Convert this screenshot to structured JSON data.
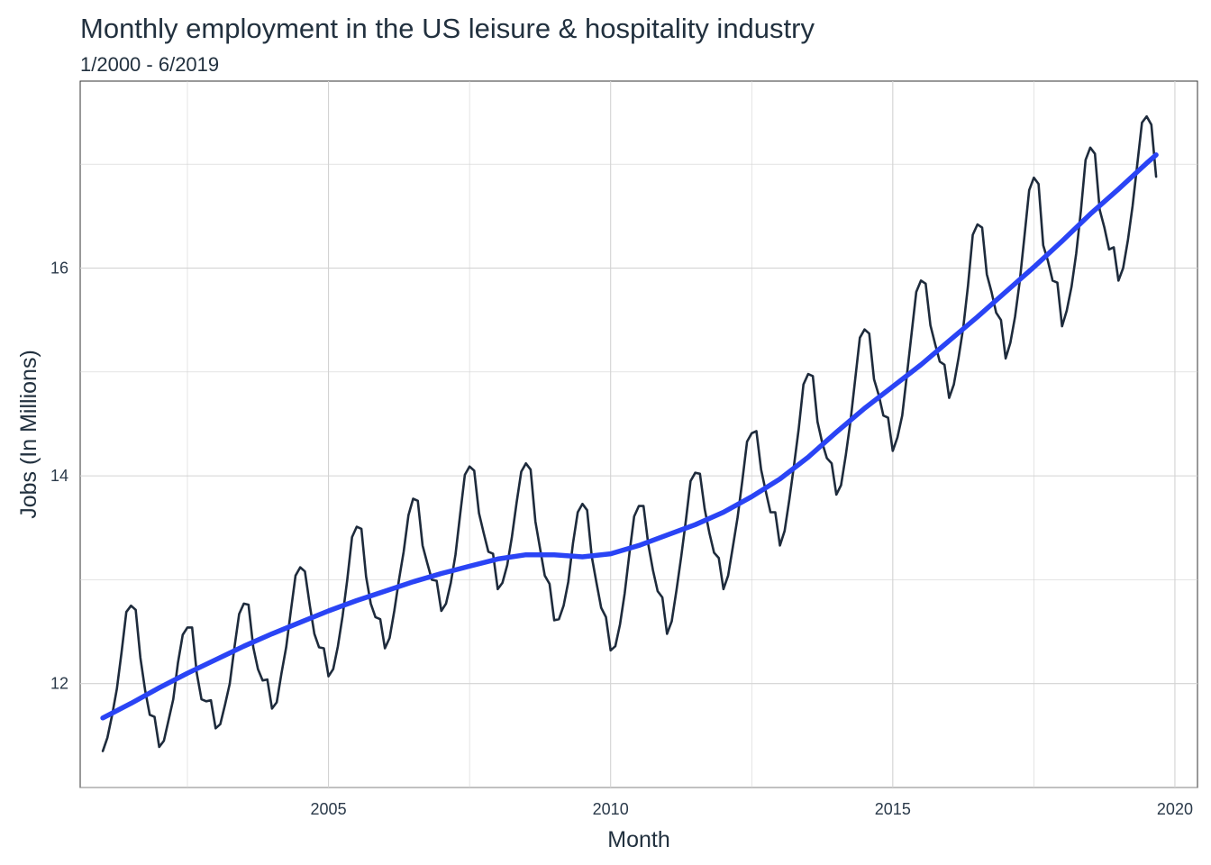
{
  "chart_data": {
    "type": "line",
    "title": "Monthly employment in the US leisure & hospitality industry",
    "subtitle": "1/2000 - 6/2019",
    "xlabel": "Month",
    "ylabel": "Jobs (In Millions)",
    "xlim": [
      2000.6,
      2020.4
    ],
    "ylim": [
      11.0,
      17.8
    ],
    "x_ticks": [
      2005,
      2010,
      2015,
      2020
    ],
    "y_ticks": [
      12,
      14,
      16
    ],
    "grid": true,
    "legend": "none",
    "colors": {
      "data_line": "#1e2b3c",
      "trend_line": "#2a44f5",
      "grid": "#d3d3d3",
      "panel_border": "#333333"
    },
    "series": [
      {
        "style": "monthly",
        "x": [
          2001.0,
          2001.083,
          2001.167,
          2001.25,
          2001.333,
          2001.417,
          2001.5,
          2001.583,
          2001.667,
          2001.75,
          2001.833,
          2001.917,
          2002.0,
          2002.083,
          2002.167,
          2002.25,
          2002.333,
          2002.417,
          2002.5,
          2002.583,
          2002.667,
          2002.75,
          2002.833,
          2002.917,
          2003.0,
          2003.083,
          2003.167,
          2003.25,
          2003.333,
          2003.417,
          2003.5,
          2003.583,
          2003.667,
          2003.75,
          2003.833,
          2003.917,
          2004.0,
          2004.083,
          2004.167,
          2004.25,
          2004.333,
          2004.417,
          2004.5,
          2004.583,
          2004.667,
          2004.75,
          2004.833,
          2004.917,
          2005.0,
          2005.083,
          2005.167,
          2005.25,
          2005.333,
          2005.417,
          2005.5,
          2005.583,
          2005.667,
          2005.75,
          2005.833,
          2005.917,
          2006.0,
          2006.083,
          2006.167,
          2006.25,
          2006.333,
          2006.417,
          2006.5,
          2006.583,
          2006.667,
          2006.75,
          2006.833,
          2006.917,
          2007.0,
          2007.083,
          2007.167,
          2007.25,
          2007.333,
          2007.417,
          2007.5,
          2007.583,
          2007.667,
          2007.75,
          2007.833,
          2007.917,
          2008.0,
          2008.083,
          2008.167,
          2008.25,
          2008.333,
          2008.417,
          2008.5,
          2008.583,
          2008.667,
          2008.75,
          2008.833,
          2008.917,
          2009.0,
          2009.083,
          2009.167,
          2009.25,
          2009.333,
          2009.417,
          2009.5,
          2009.583,
          2009.667,
          2009.75,
          2009.833,
          2009.917,
          2010.0,
          2010.083,
          2010.167,
          2010.25,
          2010.333,
          2010.417,
          2010.5,
          2010.583,
          2010.667,
          2010.75,
          2010.833,
          2010.917,
          2011.0,
          2011.083,
          2011.167,
          2011.25,
          2011.333,
          2011.417,
          2011.5,
          2011.583,
          2011.667,
          2011.75,
          2011.833,
          2011.917,
          2012.0,
          2012.083,
          2012.167,
          2012.25,
          2012.333,
          2012.417,
          2012.5,
          2012.583,
          2012.667,
          2012.75,
          2012.833,
          2012.917,
          2013.0,
          2013.083,
          2013.167,
          2013.25,
          2013.333,
          2013.417,
          2013.5,
          2013.583,
          2013.667,
          2013.75,
          2013.833,
          2013.917,
          2014.0,
          2014.083,
          2014.167,
          2014.25,
          2014.333,
          2014.417,
          2014.5,
          2014.583,
          2014.667,
          2014.75,
          2014.833,
          2014.917,
          2015.0,
          2015.083,
          2015.167,
          2015.25,
          2015.333,
          2015.417,
          2015.5,
          2015.583,
          2015.667,
          2015.75,
          2015.833,
          2015.917,
          2016.0,
          2016.083,
          2016.167,
          2016.25,
          2016.333,
          2016.417,
          2016.5,
          2016.583,
          2016.667,
          2016.75,
          2016.833,
          2016.917,
          2017.0,
          2017.083,
          2017.167,
          2017.25,
          2017.333,
          2017.417,
          2017.5,
          2017.583,
          2017.667,
          2017.75,
          2017.833,
          2017.917,
          2018.0,
          2018.083,
          2018.167,
          2018.25,
          2018.333,
          2018.417,
          2018.5,
          2018.583,
          2018.667,
          2018.75,
          2018.833,
          2018.917,
          2019.0,
          2019.083,
          2019.167,
          2019.25,
          2019.333,
          2019.417,
          2019.5,
          2019.583,
          2019.667
        ],
        "y": [
          11.35,
          11.48,
          11.7,
          11.95,
          12.3,
          12.69,
          12.75,
          12.71,
          12.25,
          11.94,
          11.7,
          11.68,
          11.39,
          11.45,
          11.65,
          11.85,
          12.2,
          12.47,
          12.54,
          12.54,
          12.1,
          11.85,
          11.83,
          11.84,
          11.57,
          11.61,
          11.8,
          12.0,
          12.35,
          12.67,
          12.77,
          12.76,
          12.35,
          12.14,
          12.03,
          12.04,
          11.76,
          11.82,
          12.1,
          12.35,
          12.7,
          13.04,
          13.12,
          13.08,
          12.76,
          12.48,
          12.35,
          12.34,
          12.07,
          12.14,
          12.36,
          12.65,
          13.0,
          13.41,
          13.51,
          13.49,
          13.03,
          12.77,
          12.64,
          12.62,
          12.34,
          12.44,
          12.7,
          13.0,
          13.27,
          13.62,
          13.78,
          13.76,
          13.33,
          13.16,
          13.0,
          12.99,
          12.7,
          12.77,
          12.97,
          13.24,
          13.63,
          14.01,
          14.09,
          14.05,
          13.64,
          13.45,
          13.27,
          13.25,
          12.91,
          12.97,
          13.14,
          13.41,
          13.74,
          14.04,
          14.12,
          14.06,
          13.56,
          13.3,
          13.04,
          12.96,
          12.61,
          12.62,
          12.75,
          12.98,
          13.35,
          13.65,
          13.73,
          13.67,
          13.22,
          12.97,
          12.73,
          12.64,
          12.32,
          12.36,
          12.57,
          12.87,
          13.25,
          13.61,
          13.71,
          13.71,
          13.34,
          13.09,
          12.89,
          12.83,
          12.48,
          12.6,
          12.9,
          13.22,
          13.57,
          13.95,
          14.03,
          14.02,
          13.68,
          13.45,
          13.26,
          13.21,
          12.91,
          13.04,
          13.32,
          13.6,
          13.95,
          14.33,
          14.41,
          14.43,
          14.06,
          13.85,
          13.65,
          13.65,
          13.33,
          13.47,
          13.77,
          14.1,
          14.45,
          14.88,
          14.98,
          14.96,
          14.52,
          14.32,
          14.17,
          14.12,
          13.82,
          13.91,
          14.2,
          14.52,
          14.92,
          15.33,
          15.41,
          15.37,
          14.93,
          14.78,
          14.58,
          14.56,
          14.24,
          14.37,
          14.58,
          14.97,
          15.37,
          15.77,
          15.88,
          15.85,
          15.45,
          15.27,
          15.1,
          15.07,
          14.75,
          14.88,
          15.14,
          15.43,
          15.83,
          16.32,
          16.42,
          16.39,
          15.94,
          15.77,
          15.57,
          15.5,
          15.13,
          15.28,
          15.53,
          15.87,
          16.3,
          16.75,
          16.87,
          16.81,
          16.22,
          16.07,
          15.88,
          15.86,
          15.44,
          15.59,
          15.82,
          16.14,
          16.55,
          17.04,
          17.16,
          17.1,
          16.56,
          16.39,
          16.18,
          16.2,
          15.88,
          16.0,
          16.27,
          16.6,
          17.0,
          17.4,
          17.46,
          17.38,
          16.88
        ]
      },
      {
        "style": "smoothed",
        "x": [
          2001.0,
          2001.5,
          2002.0,
          2002.5,
          2003.0,
          2003.5,
          2004.0,
          2004.5,
          2005.0,
          2005.5,
          2006.0,
          2006.5,
          2007.0,
          2007.5,
          2008.0,
          2008.5,
          2009.0,
          2009.5,
          2010.0,
          2010.5,
          2011.0,
          2011.5,
          2012.0,
          2012.5,
          2013.0,
          2013.5,
          2014.0,
          2014.5,
          2015.0,
          2015.5,
          2016.0,
          2016.5,
          2017.0,
          2017.5,
          2018.0,
          2018.5,
          2019.0,
          2019.5,
          2019.667
        ],
        "y": [
          11.67,
          11.81,
          11.96,
          12.1,
          12.23,
          12.36,
          12.48,
          12.59,
          12.7,
          12.8,
          12.89,
          12.98,
          13.06,
          13.13,
          13.2,
          13.24,
          13.24,
          13.22,
          13.25,
          13.33,
          13.43,
          13.53,
          13.65,
          13.8,
          13.97,
          14.18,
          14.42,
          14.65,
          14.86,
          15.07,
          15.3,
          15.53,
          15.77,
          16.01,
          16.26,
          16.52,
          16.76,
          17.01,
          17.09
        ]
      }
    ]
  }
}
